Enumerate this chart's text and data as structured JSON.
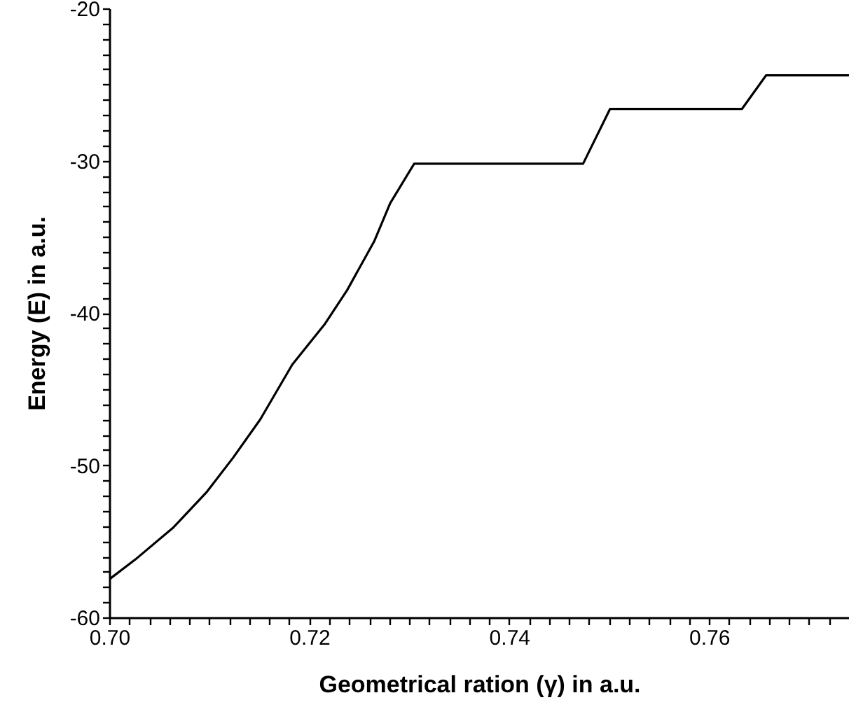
{
  "chart_data": {
    "type": "line",
    "xlabel": "Geometrical ration (γ) in a.u.",
    "ylabel": "Energy (E) in a.u.",
    "xlim": [
      0.7,
      0.774
    ],
    "ylim": [
      -60,
      -20
    ],
    "xticks": [
      {
        "value": 0.7,
        "label": "0.70"
      },
      {
        "value": 0.702,
        "label": null
      },
      {
        "value": 0.704,
        "label": null
      },
      {
        "value": 0.706,
        "label": null
      },
      {
        "value": 0.708,
        "label": null
      },
      {
        "value": 0.71,
        "label": null
      },
      {
        "value": 0.712,
        "label": null
      },
      {
        "value": 0.714,
        "label": null
      },
      {
        "value": 0.716,
        "label": null
      },
      {
        "value": 0.718,
        "label": null
      },
      0.72,
      {
        "value": 0.722,
        "label": null
      },
      {
        "value": 0.724,
        "label": null
      },
      {
        "value": 0.726,
        "label": null
      },
      {
        "value": 0.728,
        "label": null
      },
      {
        "value": 0.73,
        "label": null
      },
      {
        "value": 0.732,
        "label": null
      },
      {
        "value": 0.734,
        "label": null
      },
      {
        "value": 0.736,
        "label": null
      },
      {
        "value": 0.738,
        "label": null
      },
      0.74,
      {
        "value": 0.742,
        "label": null
      },
      {
        "value": 0.744,
        "label": null
      },
      {
        "value": 0.746,
        "label": null
      },
      {
        "value": 0.748,
        "label": null
      },
      {
        "value": 0.75,
        "label": null
      },
      {
        "value": 0.752,
        "label": null
      },
      {
        "value": 0.754,
        "label": null
      },
      {
        "value": 0.756,
        "label": null
      },
      {
        "value": 0.758,
        "label": null
      },
      0.76,
      {
        "value": 0.762,
        "label": null
      },
      {
        "value": 0.764,
        "label": null
      },
      {
        "value": 0.766,
        "label": null
      },
      {
        "value": 0.768,
        "label": null
      },
      {
        "value": 0.77,
        "label": null
      },
      {
        "value": 0.772,
        "label": null
      }
    ],
    "yticks": [
      -60,
      {
        "value": -59,
        "label": null
      },
      {
        "value": -58,
        "label": null
      },
      {
        "value": -57,
        "label": null
      },
      {
        "value": -56,
        "label": null
      },
      {
        "value": -55,
        "label": null
      },
      {
        "value": -54,
        "label": null
      },
      {
        "value": -53,
        "label": null
      },
      {
        "value": -52,
        "label": null
      },
      {
        "value": -51,
        "label": null
      },
      -50,
      {
        "value": -49,
        "label": null
      },
      {
        "value": -48,
        "label": null
      },
      {
        "value": -47,
        "label": null
      },
      {
        "value": -46,
        "label": null
      },
      {
        "value": -45,
        "label": null
      },
      {
        "value": -44,
        "label": null
      },
      {
        "value": -43,
        "label": null
      },
      {
        "value": -42,
        "label": null
      },
      {
        "value": -41,
        "label": null
      },
      -40,
      {
        "value": -39,
        "label": null
      },
      {
        "value": -38,
        "label": null
      },
      {
        "value": -37,
        "label": null
      },
      {
        "value": -36,
        "label": null
      },
      {
        "value": -35,
        "label": null
      },
      {
        "value": -34,
        "label": null
      },
      {
        "value": -33,
        "label": null
      },
      {
        "value": -32,
        "label": null
      },
      {
        "value": -31,
        "label": null
      },
      -30,
      {
        "value": -29,
        "label": null
      },
      {
        "value": -28,
        "label": null
      },
      {
        "value": -27,
        "label": null
      },
      {
        "value": -26,
        "label": null
      },
      {
        "value": -25,
        "label": null
      },
      {
        "value": -24,
        "label": null
      },
      {
        "value": -23,
        "label": null
      },
      {
        "value": -22,
        "label": null
      },
      {
        "value": -21,
        "label": null
      },
      -20
    ],
    "grid": false,
    "marker": "none",
    "line_style": "solid",
    "series": [
      {
        "color": "#000000",
        "x": [
          0.7,
          0.7026,
          0.7064,
          0.7097,
          0.7124,
          0.7151,
          0.7183,
          0.7216,
          0.7238,
          0.7265,
          0.7281,
          0.7305,
          0.7474,
          0.7501,
          0.7633,
          0.7657,
          0.774
        ],
        "values": [
          -57.5,
          -56.2,
          -54.1,
          -51.8,
          -49.5,
          -47.0,
          -43.4,
          -40.7,
          -38.5,
          -35.3,
          -32.8,
          -30.2,
          -30.2,
          -26.6,
          -26.6,
          -24.4,
          -24.4
        ]
      }
    ]
  }
}
